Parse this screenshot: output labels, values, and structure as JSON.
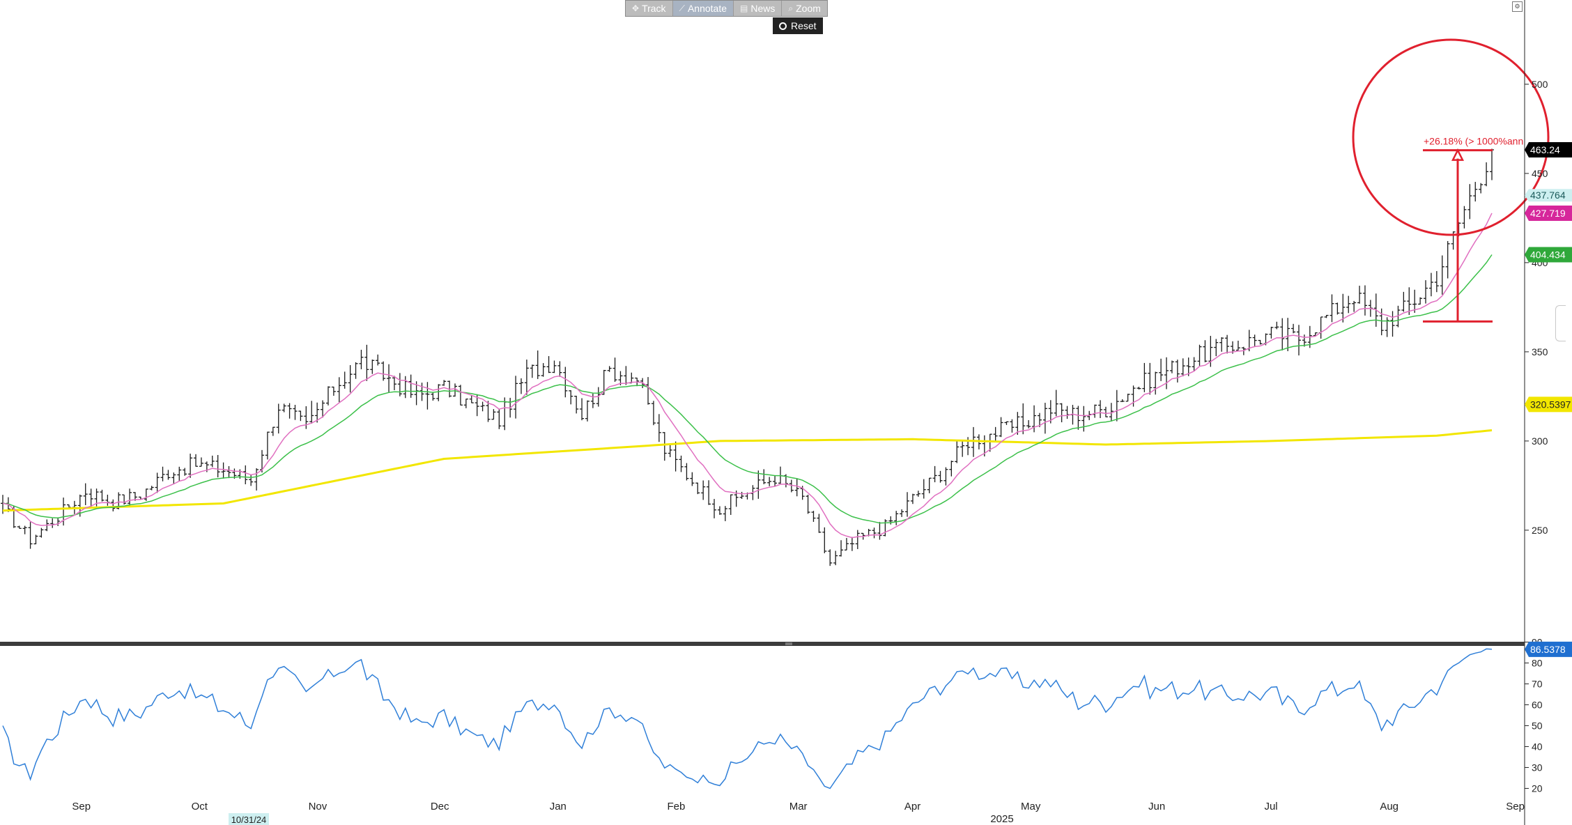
{
  "toolbar": {
    "items": [
      {
        "icon": "track-icon",
        "glyph": "✥",
        "label": "Track"
      },
      {
        "icon": "annotate-icon",
        "glyph": "⟋",
        "label": "Annotate"
      },
      {
        "icon": "news-icon",
        "glyph": "▤",
        "label": "News"
      },
      {
        "icon": "zoom-icon",
        "glyph": "⌕",
        "label": "Zoom"
      }
    ],
    "reset_label": "Reset"
  },
  "colors": {
    "price_bars": "#1a1a1a",
    "ma_fast": "#e06fc0",
    "ma_mid": "#3cc04a",
    "ma_slow": "#f2e600",
    "rsi": "#2f7fd8",
    "annotation": "#e0202e",
    "label_last": "#000000",
    "label_437": "#cdeff0",
    "label_427": "#d6279b",
    "label_404": "#2fa83a",
    "label_320": "#f2e600",
    "label_rsi": "#1f6fd0"
  },
  "chart_data": [
    {
      "type": "ohlc",
      "ylim": [
        200,
        505
      ],
      "ytick_labels": [
        "250",
        "300",
        "350",
        "400",
        "450",
        "500"
      ],
      "x_month_labels": [
        "Sep",
        "Oct",
        "Nov",
        "Dec",
        "Jan",
        "Feb",
        "Mar",
        "Apr",
        "May",
        "Jun",
        "Jul",
        "Aug",
        "Sep"
      ],
      "year_label": "2025",
      "date_label": "10/31/24",
      "grid": false,
      "series_weekly_close": [
        {
          "date": "2024-08-26",
          "close": 262
        },
        {
          "date": "2024-09-02",
          "close": 245
        },
        {
          "date": "2024-09-09",
          "close": 258
        },
        {
          "date": "2024-09-16",
          "close": 272
        },
        {
          "date": "2024-09-23",
          "close": 266
        },
        {
          "date": "2024-09-30",
          "close": 270
        },
        {
          "date": "2024-10-07",
          "close": 283
        },
        {
          "date": "2024-10-14",
          "close": 287
        },
        {
          "date": "2024-10-21",
          "close": 284
        },
        {
          "date": "2024-10-28",
          "close": 278
        },
        {
          "date": "2024-11-04",
          "close": 320
        },
        {
          "date": "2024-11-11",
          "close": 308
        },
        {
          "date": "2024-11-18",
          "close": 330
        },
        {
          "date": "2024-11-25",
          "close": 345
        },
        {
          "date": "2024-12-02",
          "close": 335
        },
        {
          "date": "2024-12-09",
          "close": 325
        },
        {
          "date": "2024-12-16",
          "close": 330
        },
        {
          "date": "2024-12-23",
          "close": 320
        },
        {
          "date": "2024-12-30",
          "close": 312
        },
        {
          "date": "2025-01-06",
          "close": 338
        },
        {
          "date": "2025-01-13",
          "close": 345
        },
        {
          "date": "2025-01-20",
          "close": 315
        },
        {
          "date": "2025-01-27",
          "close": 340
        },
        {
          "date": "2025-02-03",
          "close": 335
        },
        {
          "date": "2025-02-10",
          "close": 295
        },
        {
          "date": "2025-02-17",
          "close": 278
        },
        {
          "date": "2025-02-24",
          "close": 262
        },
        {
          "date": "2025-03-03",
          "close": 272
        },
        {
          "date": "2025-03-10",
          "close": 280
        },
        {
          "date": "2025-03-17",
          "close": 268
        },
        {
          "date": "2025-03-24",
          "close": 232
        },
        {
          "date": "2025-03-31",
          "close": 245
        },
        {
          "date": "2025-04-07",
          "close": 252
        },
        {
          "date": "2025-04-14",
          "close": 268
        },
        {
          "date": "2025-04-21",
          "close": 282
        },
        {
          "date": "2025-04-28",
          "close": 300
        },
        {
          "date": "2025-05-05",
          "close": 305
        },
        {
          "date": "2025-05-12",
          "close": 310
        },
        {
          "date": "2025-05-19",
          "close": 318
        },
        {
          "date": "2025-05-26",
          "close": 315
        },
        {
          "date": "2025-06-02",
          "close": 318
        },
        {
          "date": "2025-06-09",
          "close": 330
        },
        {
          "date": "2025-06-16",
          "close": 338
        },
        {
          "date": "2025-06-23",
          "close": 345
        },
        {
          "date": "2025-06-30",
          "close": 352
        },
        {
          "date": "2025-07-07",
          "close": 355
        },
        {
          "date": "2025-07-14",
          "close": 360
        },
        {
          "date": "2025-07-21",
          "close": 358
        },
        {
          "date": "2025-07-28",
          "close": 370
        },
        {
          "date": "2025-08-04",
          "close": 382
        },
        {
          "date": "2025-08-11",
          "close": 365
        },
        {
          "date": "2025-08-18",
          "close": 376
        },
        {
          "date": "2025-08-25",
          "close": 392
        },
        {
          "date": "2025-09-01",
          "close": 430
        },
        {
          "date": "2025-09-08",
          "close": 463.24
        }
      ],
      "ma_fast_last": 427.719,
      "ma_mid_last": 404.434,
      "ma_slow_last": 320.5397,
      "price_last": 463.24,
      "other_last": 437.764,
      "value_labels": [
        "463.24",
        "437.764",
        "427.719",
        "404.434",
        "320.5397"
      ],
      "annotation": {
        "text": "+26.18% (> 1000%ann",
        "from": 367,
        "to": 463
      }
    },
    {
      "type": "line",
      "ylim": [
        18,
        92
      ],
      "ytick_labels": [
        "20",
        "30",
        "40",
        "50",
        "60",
        "70",
        "80",
        "90"
      ],
      "last_value_label": "86.5378",
      "last_value": 86.5378
    }
  ]
}
